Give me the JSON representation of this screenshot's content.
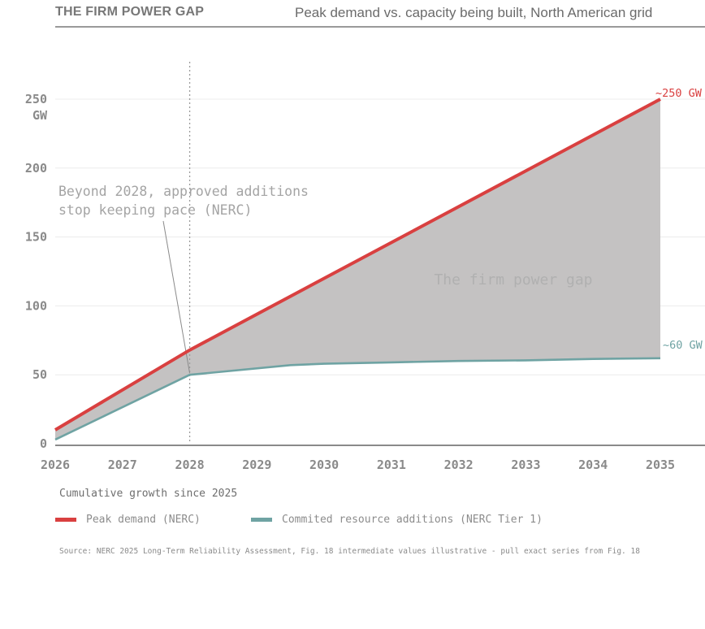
{
  "header": {
    "title": "THE FIRM POWER GAP",
    "subtitle": "Peak demand vs. capacity being built, North American grid"
  },
  "chart_data": {
    "type": "area",
    "x": [
      2026,
      2027,
      2028,
      2029,
      2029.5,
      2030,
      2031,
      2032,
      2033,
      2034,
      2035
    ],
    "x_tick_labels": [
      "2026",
      "2027",
      "2028",
      "2029",
      "2030",
      "2031",
      "2032",
      "2033",
      "2034",
      "2035"
    ],
    "y_tick_labels": [
      "0",
      "50",
      "100",
      "150",
      "200",
      "250\nGW"
    ],
    "ylim": [
      0,
      250
    ],
    "xlim": [
      2026,
      2035
    ],
    "grid": true,
    "series": [
      {
        "name": "Peak demand (NERC)",
        "color": "#d94040",
        "x": [
          2026,
          2028,
          2035
        ],
        "values": [
          10,
          68,
          250
        ]
      },
      {
        "name": "Commited resource additions (NERC Tier 1)",
        "color": "#6fa3a3",
        "x": [
          2026,
          2028,
          2029.5,
          2030,
          2031,
          2032,
          2033,
          2034,
          2035
        ],
        "values": [
          3,
          50,
          57,
          58,
          59,
          60,
          60.5,
          61.5,
          62
        ]
      }
    ],
    "gap_fill_color": "#c4c2c2",
    "gap_label": "The firm power gap",
    "end_labels": {
      "demand": "~250 GW",
      "additions": "~60 GW"
    },
    "reference_line": {
      "x": 2028,
      "style": "dotted"
    },
    "annotation": {
      "line1": "Beyond 2028, approved additions",
      "line2": "stop keeping pace (NERC)"
    },
    "legend_placement": "bottom-left"
  },
  "legend": {
    "title": "Cumulative growth since 2025",
    "items": [
      {
        "label": "Peak demand (NERC)",
        "color": "#d94040"
      },
      {
        "label": "Commited resource additions (NERC Tier 1)",
        "color": "#6fa3a3"
      }
    ]
  },
  "footer": {
    "source": "Source: NERC 2025 Long-Term Reliability Assessment, Fig. 18 intermediate values illustrative - pull exact series from Fig. 18"
  }
}
